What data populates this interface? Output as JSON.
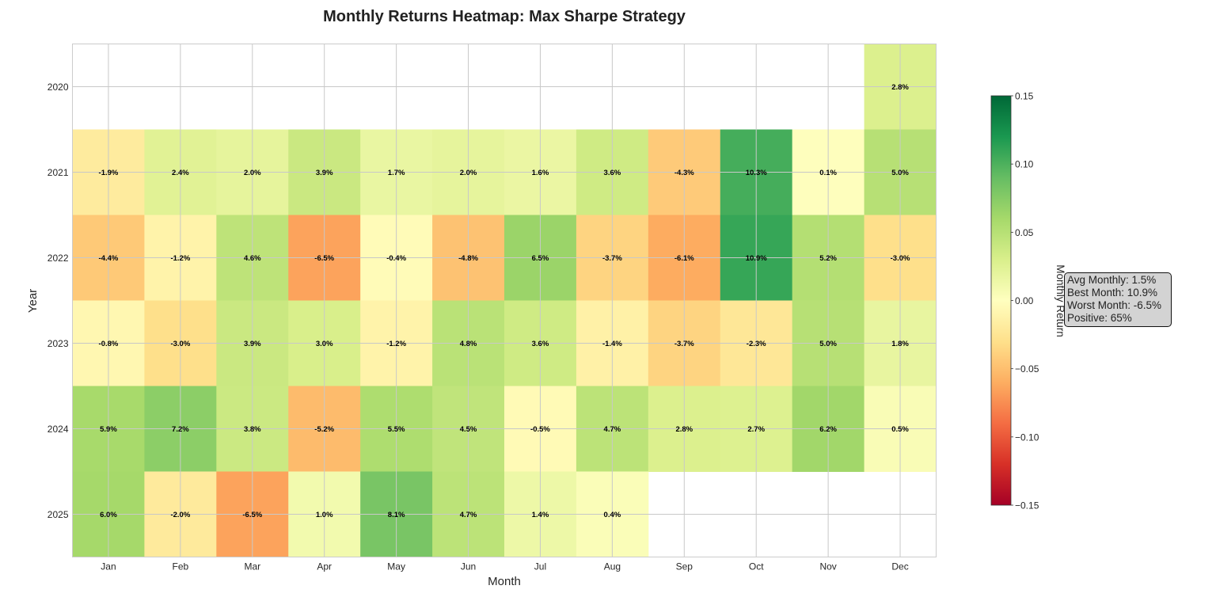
{
  "chart_data": {
    "type": "heatmap",
    "title": "Monthly Returns Heatmap: Max Sharpe Strategy",
    "xlabel": "Month",
    "ylabel": "Year",
    "x_categories": [
      "Jan",
      "Feb",
      "Mar",
      "Apr",
      "May",
      "Jun",
      "Jul",
      "Aug",
      "Sep",
      "Oct",
      "Nov",
      "Dec"
    ],
    "y_categories": [
      "2020",
      "2021",
      "2022",
      "2023",
      "2024",
      "2025"
    ],
    "values": [
      [
        null,
        null,
        null,
        null,
        null,
        null,
        null,
        null,
        null,
        null,
        null,
        0.028
      ],
      [
        -0.019,
        0.024,
        0.02,
        0.039,
        0.017,
        0.02,
        0.016,
        0.036,
        -0.043,
        0.103,
        0.001,
        0.05
      ],
      [
        -0.044,
        -0.012,
        0.046,
        -0.065,
        -0.004,
        -0.048,
        0.065,
        -0.037,
        -0.061,
        0.109,
        0.052,
        -0.03
      ],
      [
        -0.008,
        -0.03,
        0.039,
        0.03,
        -0.012,
        0.048,
        0.036,
        -0.014,
        -0.037,
        -0.023,
        0.05,
        0.018
      ],
      [
        0.059,
        0.072,
        0.038,
        -0.052,
        0.055,
        0.045,
        -0.005,
        0.047,
        0.028,
        0.027,
        0.062,
        0.005
      ],
      [
        0.06,
        -0.02,
        -0.065,
        0.01,
        0.081,
        0.047,
        0.014,
        0.004,
        null,
        null,
        null,
        null
      ]
    ],
    "cell_labels": [
      [
        null,
        null,
        null,
        null,
        null,
        null,
        null,
        null,
        null,
        null,
        null,
        "2.8%"
      ],
      [
        "-1.9%",
        "2.4%",
        "2.0%",
        "3.9%",
        "1.7%",
        "2.0%",
        "1.6%",
        "3.6%",
        "-4.3%",
        "10.3%",
        "0.1%",
        "5.0%"
      ],
      [
        "-4.4%",
        "-1.2%",
        "4.6%",
        "-6.5%",
        "-0.4%",
        "-4.8%",
        "6.5%",
        "-3.7%",
        "-6.1%",
        "10.9%",
        "5.2%",
        "-3.0%"
      ],
      [
        "-0.8%",
        "-3.0%",
        "3.9%",
        "3.0%",
        "-1.2%",
        "4.8%",
        "3.6%",
        "-1.4%",
        "-3.7%",
        "-2.3%",
        "5.0%",
        "1.8%"
      ],
      [
        "5.9%",
        "7.2%",
        "3.8%",
        "-5.2%",
        "5.5%",
        "4.5%",
        "-0.5%",
        "4.7%",
        "2.8%",
        "2.7%",
        "6.2%",
        "0.5%"
      ],
      [
        "6.0%",
        "-2.0%",
        "-6.5%",
        "1.0%",
        "8.1%",
        "4.7%",
        "1.4%",
        "0.4%",
        null,
        null,
        null,
        null
      ]
    ],
    "colormap": "RdYlGn",
    "vmin": -0.15,
    "vmax": 0.15,
    "colorbar": {
      "label": "Monthly Return",
      "ticks": [
        0.15,
        0.1,
        0.05,
        0.0,
        -0.05,
        -0.1,
        -0.15
      ],
      "tick_labels": [
        "0.15",
        "0.10",
        "0.05",
        "0.00",
        "−0.05",
        "−0.10",
        "−0.15"
      ]
    },
    "grid": true,
    "annotation": {
      "lines": [
        "Avg Monthly: 1.5%",
        "Best Month: 10.9%",
        "Worst Month: -6.5%",
        "Positive: 65%"
      ]
    }
  }
}
